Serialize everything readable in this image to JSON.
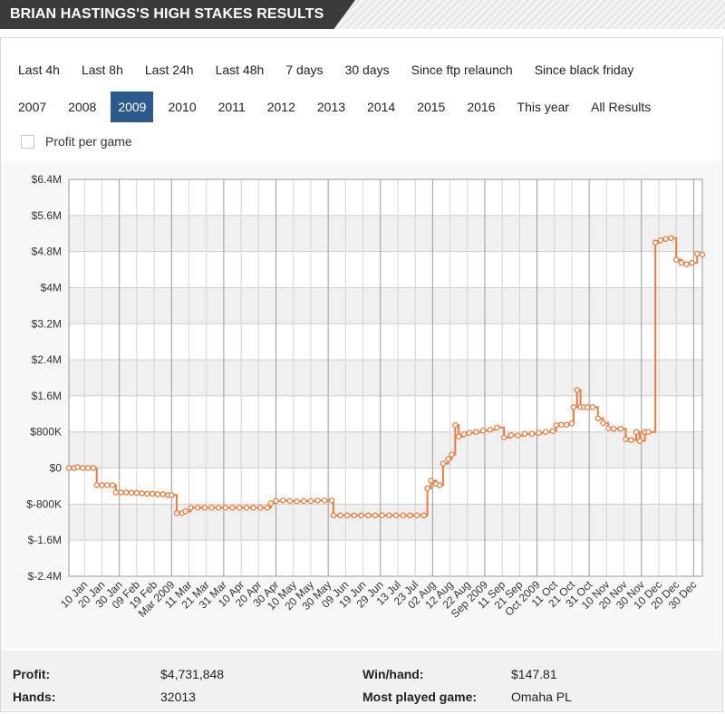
{
  "header": {
    "title": "BRIAN HASTINGS'S HIGH STAKES RESULTS"
  },
  "filters": {
    "row1": [
      "Last 4h",
      "Last 8h",
      "Last 24h",
      "Last 48h",
      "7 days",
      "30 days",
      "Since ftp relaunch",
      "Since black friday"
    ],
    "row2": [
      "2007",
      "2008",
      "2009",
      "2010",
      "2011",
      "2012",
      "2013",
      "2014",
      "2015",
      "2016",
      "This year",
      "All Results"
    ],
    "active": "2009",
    "profit_per_game_label": "Profit per game"
  },
  "colors": {
    "line": "#f07a3a",
    "active_filter": "#2d5a8c"
  },
  "chart_data": {
    "type": "line",
    "title": "",
    "xlabel": "",
    "ylabel": "",
    "y_ticks": [
      "$6.4M",
      "$5.6M",
      "$4.8M",
      "$4M",
      "$3.2M",
      "$2.4M",
      "$1.6M",
      "$800K",
      "$0",
      "$-800K",
      "$-1.6M",
      "$-2.4M"
    ],
    "ylim": [
      -2400000,
      6400000
    ],
    "x_tick_labels": [
      "10 Jan",
      "20 Jan",
      "30 Jan",
      "09 Feb",
      "19 Feb",
      "Mar 2009",
      "11 Mar",
      "21 Mar",
      "31 Mar",
      "10 Apr",
      "20 Apr",
      "30 Apr",
      "10 May",
      "20 May",
      "30 May",
      "09 Jun",
      "19 Jun",
      "29 Jun",
      "13 Jul",
      "23 Jul",
      "02 Aug",
      "12 Aug",
      "22 Aug",
      "Sep 2009",
      "11 Sep",
      "21 Sep",
      "Oct 2009",
      "11 Oct",
      "21 Oct",
      "31 Oct",
      "10 Nov",
      "20 Nov",
      "30 Nov",
      "10 Dec",
      "20 Dec",
      "30 Dec"
    ],
    "xlim": [
      "2009-01-01",
      "2009-12-31"
    ],
    "grid": true,
    "series": [
      {
        "points": [
          [
            "2009-01-01",
            0
          ],
          [
            "2009-01-04",
            0
          ],
          [
            "2009-01-06",
            20000
          ],
          [
            "2009-01-09",
            0
          ],
          [
            "2009-01-12",
            0
          ],
          [
            "2009-01-15",
            0
          ],
          [
            "2009-01-17",
            -380000
          ],
          [
            "2009-01-20",
            -380000
          ],
          [
            "2009-01-23",
            -380000
          ],
          [
            "2009-01-26",
            -380000
          ],
          [
            "2009-01-28",
            -540000
          ],
          [
            "2009-01-31",
            -540000
          ],
          [
            "2009-02-03",
            -540000
          ],
          [
            "2009-02-06",
            -550000
          ],
          [
            "2009-02-09",
            -550000
          ],
          [
            "2009-02-12",
            -560000
          ],
          [
            "2009-02-15",
            -570000
          ],
          [
            "2009-02-18",
            -570000
          ],
          [
            "2009-02-21",
            -580000
          ],
          [
            "2009-02-24",
            -580000
          ],
          [
            "2009-02-27",
            -600000
          ],
          [
            "2009-03-01",
            -600000
          ],
          [
            "2009-03-04",
            -1000000
          ],
          [
            "2009-03-07",
            -1000000
          ],
          [
            "2009-03-09",
            -960000
          ],
          [
            "2009-03-12",
            -880000
          ],
          [
            "2009-03-16",
            -880000
          ],
          [
            "2009-03-20",
            -880000
          ],
          [
            "2009-03-24",
            -880000
          ],
          [
            "2009-03-28",
            -880000
          ],
          [
            "2009-04-01",
            -880000
          ],
          [
            "2009-04-05",
            -880000
          ],
          [
            "2009-04-09",
            -880000
          ],
          [
            "2009-04-13",
            -880000
          ],
          [
            "2009-04-17",
            -880000
          ],
          [
            "2009-04-21",
            -880000
          ],
          [
            "2009-04-25",
            -880000
          ],
          [
            "2009-04-27",
            -780000
          ],
          [
            "2009-04-30",
            -730000
          ],
          [
            "2009-05-04",
            -720000
          ],
          [
            "2009-05-08",
            -730000
          ],
          [
            "2009-05-12",
            -740000
          ],
          [
            "2009-05-16",
            -730000
          ],
          [
            "2009-05-20",
            -730000
          ],
          [
            "2009-05-24",
            -720000
          ],
          [
            "2009-05-28",
            -720000
          ],
          [
            "2009-06-01",
            -720000
          ],
          [
            "2009-06-02",
            -1050000
          ],
          [
            "2009-06-06",
            -1050000
          ],
          [
            "2009-06-10",
            -1050000
          ],
          [
            "2009-06-14",
            -1050000
          ],
          [
            "2009-06-18",
            -1050000
          ],
          [
            "2009-06-22",
            -1050000
          ],
          [
            "2009-06-26",
            -1050000
          ],
          [
            "2009-06-30",
            -1050000
          ],
          [
            "2009-07-04",
            -1050000
          ],
          [
            "2009-07-08",
            -1050000
          ],
          [
            "2009-07-12",
            -1050000
          ],
          [
            "2009-07-16",
            -1050000
          ],
          [
            "2009-07-20",
            -1050000
          ],
          [
            "2009-07-24",
            -1050000
          ],
          [
            "2009-07-26",
            -450000
          ],
          [
            "2009-07-28",
            -280000
          ],
          [
            "2009-07-31",
            -350000
          ],
          [
            "2009-08-02",
            -380000
          ],
          [
            "2009-08-04",
            100000
          ],
          [
            "2009-08-07",
            200000
          ],
          [
            "2009-08-09",
            300000
          ],
          [
            "2009-08-11",
            950000
          ],
          [
            "2009-08-13",
            700000
          ],
          [
            "2009-08-16",
            750000
          ],
          [
            "2009-08-19",
            780000
          ],
          [
            "2009-08-23",
            800000
          ],
          [
            "2009-08-27",
            830000
          ],
          [
            "2009-08-31",
            850000
          ],
          [
            "2009-09-04",
            900000
          ],
          [
            "2009-09-08",
            680000
          ],
          [
            "2009-09-12",
            730000
          ],
          [
            "2009-09-16",
            720000
          ],
          [
            "2009-09-20",
            760000
          ],
          [
            "2009-09-24",
            760000
          ],
          [
            "2009-09-28",
            780000
          ],
          [
            "2009-10-02",
            800000
          ],
          [
            "2009-10-06",
            820000
          ],
          [
            "2009-10-08",
            950000
          ],
          [
            "2009-10-11",
            960000
          ],
          [
            "2009-10-14",
            960000
          ],
          [
            "2009-10-17",
            990000
          ],
          [
            "2009-10-18",
            1350000
          ],
          [
            "2009-10-20",
            1730000
          ],
          [
            "2009-10-22",
            1350000
          ],
          [
            "2009-10-24",
            1350000
          ],
          [
            "2009-10-26",
            1350000
          ],
          [
            "2009-10-29",
            1350000
          ],
          [
            "2009-11-01",
            1100000
          ],
          [
            "2009-11-04",
            1000000
          ],
          [
            "2009-11-07",
            880000
          ],
          [
            "2009-11-10",
            870000
          ],
          [
            "2009-11-14",
            870000
          ],
          [
            "2009-11-17",
            640000
          ],
          [
            "2009-11-20",
            620000
          ],
          [
            "2009-11-23",
            800000
          ],
          [
            "2009-11-25",
            600000
          ],
          [
            "2009-11-28",
            800000
          ],
          [
            "2009-11-30",
            800000
          ],
          [
            "2009-12-04",
            5000000
          ],
          [
            "2009-12-07",
            5050000
          ],
          [
            "2009-12-10",
            5080000
          ],
          [
            "2009-12-13",
            5100000
          ],
          [
            "2009-12-16",
            4620000
          ],
          [
            "2009-12-19",
            4550000
          ],
          [
            "2009-12-22",
            4520000
          ],
          [
            "2009-12-25",
            4550000
          ],
          [
            "2009-12-28",
            4750000
          ],
          [
            "2009-12-31",
            4731848
          ]
        ]
      }
    ]
  },
  "stats": {
    "profit_label": "Profit:",
    "profit_value": "$4,731,848",
    "hands_label": "Hands:",
    "hands_value": "32013",
    "winhand_label": "Win/hand:",
    "winhand_value": "$147.81",
    "most_played_label": "Most played game:",
    "most_played_value": "Omaha PL"
  }
}
